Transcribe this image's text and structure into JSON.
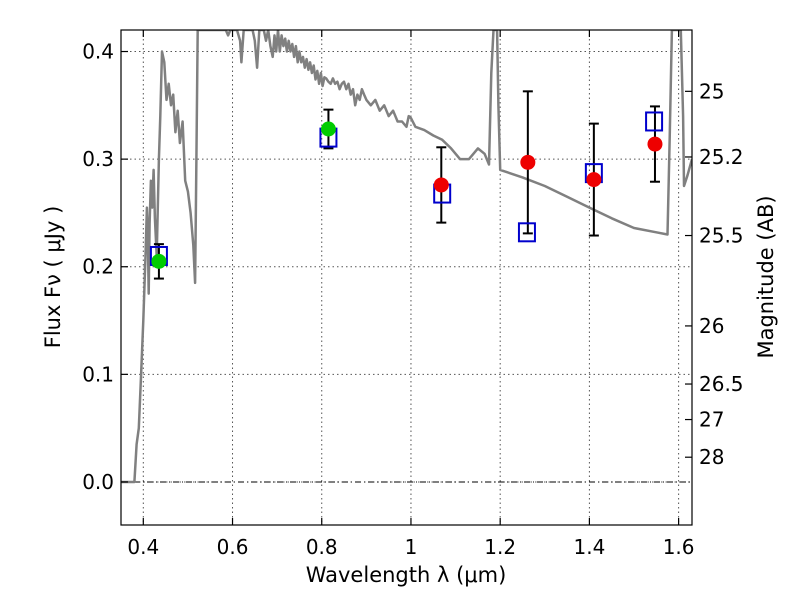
{
  "chart_data": {
    "type": "scatter",
    "xlabel": "Wavelength  λ (μm)",
    "ylabel": "Flux  Fν  ( μJy )",
    "y2label": "Magnitude (AB)",
    "xlim": [
      0.35,
      1.63
    ],
    "ylim": [
      -0.04,
      0.42
    ],
    "xticks": [
      {
        "value": 0.4,
        "label": "0.4"
      },
      {
        "value": 0.6,
        "label": "0.6"
      },
      {
        "value": 0.8,
        "label": "0.8"
      },
      {
        "value": 1.0,
        "label": "1"
      },
      {
        "value": 1.2,
        "label": "1.2"
      },
      {
        "value": 1.4,
        "label": "1.4"
      },
      {
        "value": 1.6,
        "label": "1.6"
      }
    ],
    "yticks": [
      {
        "value": 0.0,
        "label": "0.0"
      },
      {
        "value": 0.1,
        "label": "0.1"
      },
      {
        "value": 0.2,
        "label": "0.2"
      },
      {
        "value": 0.3,
        "label": "0.3"
      },
      {
        "value": 0.4,
        "label": "0.4"
      }
    ],
    "magnitude_ticks": [
      {
        "label": "25",
        "flux": 0.363
      },
      {
        "label": "25.2",
        "flux": 0.302
      },
      {
        "label": "25.5",
        "flux": 0.229
      },
      {
        "label": "26",
        "flux": 0.145
      },
      {
        "label": "26.5",
        "flux": 0.091
      },
      {
        "label": "27",
        "flux": 0.058
      },
      {
        "label": "28",
        "flux": 0.023
      }
    ],
    "grid": true,
    "grid_style": "dotted",
    "zero_line": 0.0,
    "model_color": "#808080",
    "model": [
      [
        0.35,
        0.0
      ],
      [
        0.38,
        0.0
      ],
      [
        0.385,
        0.035
      ],
      [
        0.39,
        0.05
      ],
      [
        0.395,
        0.1
      ],
      [
        0.4,
        0.15
      ],
      [
        0.405,
        0.21
      ],
      [
        0.408,
        0.255
      ],
      [
        0.41,
        0.23
      ],
      [
        0.412,
        0.175
      ],
      [
        0.414,
        0.24
      ],
      [
        0.417,
        0.28
      ],
      [
        0.42,
        0.255
      ],
      [
        0.423,
        0.29
      ],
      [
        0.426,
        0.245
      ],
      [
        0.43,
        0.21
      ],
      [
        0.435,
        0.3
      ],
      [
        0.438,
        0.34
      ],
      [
        0.442,
        0.4
      ],
      [
        0.447,
        0.39
      ],
      [
        0.452,
        0.355
      ],
      [
        0.457,
        0.37
      ],
      [
        0.462,
        0.35
      ],
      [
        0.467,
        0.36
      ],
      [
        0.472,
        0.325
      ],
      [
        0.477,
        0.345
      ],
      [
        0.482,
        0.315
      ],
      [
        0.488,
        0.335
      ],
      [
        0.494,
        0.28
      ],
      [
        0.5,
        0.27
      ],
      [
        0.506,
        0.25
      ],
      [
        0.512,
        0.22
      ],
      [
        0.516,
        0.185
      ],
      [
        0.519,
        0.3
      ],
      [
        0.522,
        0.42
      ],
      [
        0.585,
        0.42
      ],
      [
        0.59,
        0.415
      ],
      [
        0.595,
        0.42
      ],
      [
        0.61,
        0.42
      ],
      [
        0.617,
        0.41
      ],
      [
        0.62,
        0.39
      ],
      [
        0.625,
        0.42
      ],
      [
        0.645,
        0.42
      ],
      [
        0.65,
        0.41
      ],
      [
        0.655,
        0.385
      ],
      [
        0.66,
        0.42
      ],
      [
        0.67,
        0.42
      ],
      [
        0.675,
        0.41
      ],
      [
        0.68,
        0.42
      ],
      [
        0.685,
        0.405
      ],
      [
        0.69,
        0.395
      ],
      [
        0.694,
        0.415
      ],
      [
        0.698,
        0.4
      ],
      [
        0.702,
        0.42
      ],
      [
        0.706,
        0.4
      ],
      [
        0.71,
        0.415
      ],
      [
        0.714,
        0.405
      ],
      [
        0.718,
        0.412
      ],
      [
        0.722,
        0.4
      ],
      [
        0.726,
        0.41
      ],
      [
        0.73,
        0.4
      ],
      [
        0.734,
        0.407
      ],
      [
        0.738,
        0.395
      ],
      [
        0.742,
        0.405
      ],
      [
        0.746,
        0.39
      ],
      [
        0.75,
        0.4
      ],
      [
        0.754,
        0.39
      ],
      [
        0.758,
        0.395
      ],
      [
        0.762,
        0.385
      ],
      [
        0.766,
        0.393
      ],
      [
        0.77,
        0.383
      ],
      [
        0.774,
        0.39
      ],
      [
        0.778,
        0.38
      ],
      [
        0.782,
        0.387
      ],
      [
        0.786,
        0.374
      ],
      [
        0.79,
        0.382
      ],
      [
        0.794,
        0.37
      ],
      [
        0.798,
        0.38
      ],
      [
        0.802,
        0.368
      ],
      [
        0.806,
        0.376
      ],
      [
        0.81,
        0.375
      ],
      [
        0.815,
        0.372
      ],
      [
        0.82,
        0.37
      ],
      [
        0.825,
        0.375
      ],
      [
        0.83,
        0.37
      ],
      [
        0.835,
        0.372
      ],
      [
        0.84,
        0.365
      ],
      [
        0.845,
        0.37
      ],
      [
        0.85,
        0.372
      ],
      [
        0.855,
        0.365
      ],
      [
        0.86,
        0.37
      ],
      [
        0.865,
        0.36
      ],
      [
        0.87,
        0.365
      ],
      [
        0.875,
        0.35
      ],
      [
        0.88,
        0.36
      ],
      [
        0.885,
        0.355
      ],
      [
        0.89,
        0.365
      ],
      [
        0.895,
        0.36
      ],
      [
        0.9,
        0.355
      ],
      [
        0.91,
        0.35
      ],
      [
        0.92,
        0.355
      ],
      [
        0.93,
        0.345
      ],
      [
        0.94,
        0.35
      ],
      [
        0.95,
        0.34
      ],
      [
        0.96,
        0.345
      ],
      [
        0.97,
        0.335
      ],
      [
        0.98,
        0.335
      ],
      [
        0.99,
        0.33
      ],
      [
        0.995,
        0.34
      ],
      [
        1.0,
        0.338
      ],
      [
        1.01,
        0.33
      ],
      [
        1.03,
        0.327
      ],
      [
        1.05,
        0.322
      ],
      [
        1.07,
        0.318
      ],
      [
        1.09,
        0.31
      ],
      [
        1.11,
        0.3
      ],
      [
        1.13,
        0.3
      ],
      [
        1.15,
        0.31
      ],
      [
        1.165,
        0.305
      ],
      [
        1.175,
        0.295
      ],
      [
        1.18,
        0.38
      ],
      [
        1.185,
        0.42
      ],
      [
        1.193,
        0.42
      ],
      [
        1.196,
        0.35
      ],
      [
        1.2,
        0.29
      ],
      [
        1.25,
        0.283
      ],
      [
        1.3,
        0.275
      ],
      [
        1.35,
        0.265
      ],
      [
        1.4,
        0.255
      ],
      [
        1.45,
        0.245
      ],
      [
        1.5,
        0.236
      ],
      [
        1.55,
        0.232
      ],
      [
        1.575,
        0.23
      ],
      [
        1.58,
        0.32
      ],
      [
        1.585,
        0.42
      ],
      [
        1.605,
        0.42
      ],
      [
        1.61,
        0.34
      ],
      [
        1.612,
        0.275
      ],
      [
        1.62,
        0.285
      ],
      [
        1.63,
        0.3
      ]
    ],
    "series": [
      {
        "marker": "square-open",
        "color": "#0000cc",
        "points": [
          {
            "x": 0.435,
            "y": 0.21
          },
          {
            "x": 0.815,
            "y": 0.32
          },
          {
            "x": 1.07,
            "y": 0.268
          },
          {
            "x": 1.26,
            "y": 0.232
          },
          {
            "x": 1.41,
            "y": 0.287
          },
          {
            "x": 1.545,
            "y": 0.335
          }
        ]
      },
      {
        "marker": "circle",
        "color": "#00cc00",
        "points": [
          {
            "x": 0.435,
            "y": 0.205,
            "yerr": 0.016
          },
          {
            "x": 0.815,
            "y": 0.328,
            "yerr": 0.018
          }
        ]
      },
      {
        "marker": "circle",
        "color": "#ee0000",
        "points": [
          {
            "x": 1.068,
            "y": 0.276,
            "yerr": 0.035
          },
          {
            "x": 1.262,
            "y": 0.297,
            "yerr": 0.066
          },
          {
            "x": 1.41,
            "y": 0.281,
            "yerr": 0.052
          },
          {
            "x": 1.547,
            "y": 0.314,
            "yerr": 0.035
          }
        ]
      }
    ]
  }
}
